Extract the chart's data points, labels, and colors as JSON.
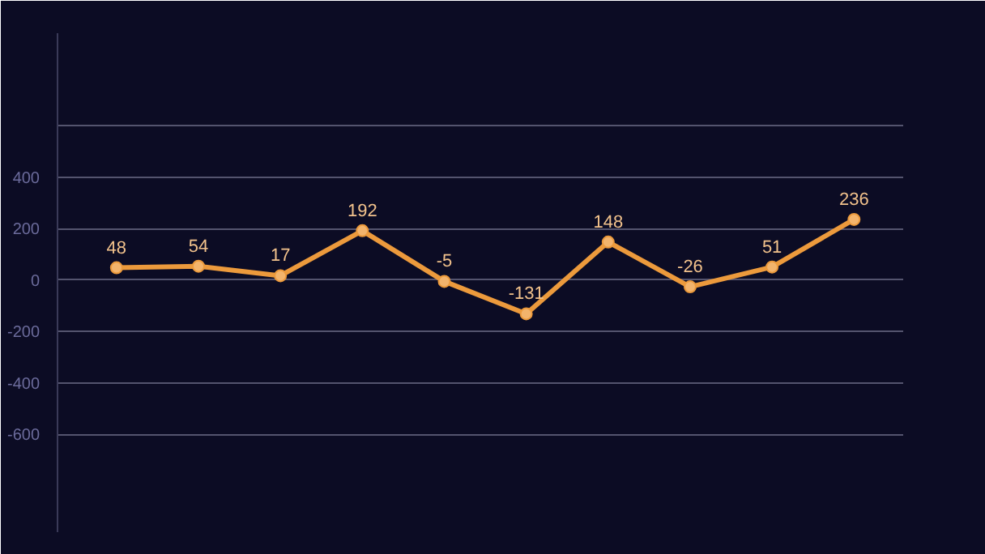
{
  "chart_data": {
    "type": "line",
    "categories": [
      null,
      null,
      null,
      null,
      null,
      null,
      null,
      null,
      null,
      null
    ],
    "series": [
      {
        "color": "#ec9a3c",
        "values": [
          48,
          54,
          17,
          192,
          -5,
          -131,
          148,
          -26,
          51,
          236
        ]
      }
    ],
    "ylim": [
      -980,
      960
    ],
    "yticks": [
      {
        "value": 600,
        "label": null
      },
      400,
      200,
      0,
      -200,
      -400,
      -600
    ],
    "grid": "y",
    "marker": "circle",
    "line_style": "solid",
    "data_labels": true
  }
}
